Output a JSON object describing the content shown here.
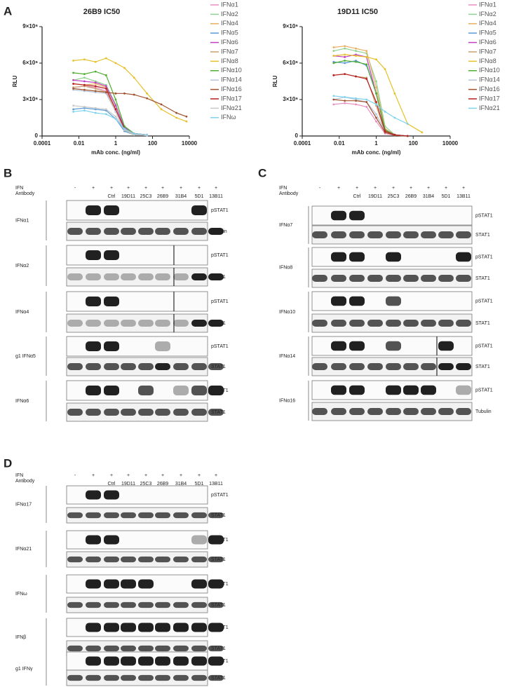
{
  "panel_a_label": "A",
  "chart_data": [
    {
      "type": "line",
      "title": "26B9 IC50",
      "xlabel": "mAb conc. (ng/ml)",
      "ylabel": "RLU",
      "xlog": true,
      "x": [
        0.005,
        0.02,
        0.08,
        0.3,
        1,
        3,
        10,
        50,
        300,
        2000,
        7000
      ],
      "xlim": [
        0.0001,
        10000
      ],
      "xticks": [
        0.0001,
        0.01,
        1,
        100,
        10000
      ],
      "ylim": [
        0,
        9000000.0
      ],
      "yticks": [
        0,
        {
          "value": 3000000.0,
          "label": "3×10⁶"
        },
        {
          "value": 6000000.0,
          "label": "6×10⁶"
        },
        {
          "value": 9000000.0,
          "label": "9×10⁶"
        }
      ],
      "series": [
        {
          "name": "IFNα1",
          "color": "#e98fbf",
          "values": [
            4000000.0,
            4100000.0,
            4000000.0,
            3700000.0,
            2200000.0,
            500000.0,
            100000.0,
            50000.0,
            null,
            null,
            null
          ]
        },
        {
          "name": "IFNα2",
          "color": "#8fd18f",
          "values": [
            4600000.0,
            4800000.0,
            4500000.0,
            4200000.0,
            2600000.0,
            600000.0,
            100000.0,
            50000.0,
            null,
            null,
            null
          ]
        },
        {
          "name": "IFNα4",
          "color": "#e8b060",
          "values": [
            4300000.0,
            4200000.0,
            4300000.0,
            4000000.0,
            2000000.0,
            400000.0,
            100000.0,
            50000.0,
            null,
            null,
            null
          ]
        },
        {
          "name": "IFNα5",
          "color": "#5b9bd5",
          "values": [
            2200000.0,
            2300000.0,
            2200000.0,
            2100000.0,
            1400000.0,
            400000.0,
            100000.0,
            50000.0,
            null,
            null,
            null
          ]
        },
        {
          "name": "IFNα6",
          "color": "#c03fc0",
          "values": [
            4600000.0,
            4500000.0,
            4400000.0,
            4100000.0,
            2500000.0,
            700000.0,
            200000.0,
            100000.0,
            null,
            null,
            null
          ]
        },
        {
          "name": "IFNα7",
          "color": "#c8a070",
          "values": [
            4000000.0,
            4100000.0,
            3900000.0,
            3600000.0,
            2000000.0,
            500000.0,
            100000.0,
            50000.0,
            null,
            null,
            null
          ]
        },
        {
          "name": "IFNα8",
          "color": "#e6c029",
          "values": [
            6200000.0,
            6300000.0,
            6100000.0,
            6400000.0,
            6000000.0,
            5600000.0,
            4800000.0,
            3500000.0,
            2200000.0,
            1500000.0,
            1200000.0
          ]
        },
        {
          "name": "IFNα10",
          "color": "#4fae30",
          "values": [
            5200000.0,
            5100000.0,
            5300000.0,
            5000000.0,
            3000000.0,
            800000.0,
            200000.0,
            100000.0,
            null,
            null,
            null
          ]
        },
        {
          "name": "IFNα14",
          "color": "#b6c6dc",
          "values": [
            3800000.0,
            3700000.0,
            3600000.0,
            3500000.0,
            2000000.0,
            500000.0,
            100000.0,
            50000.0,
            null,
            null,
            null
          ]
        },
        {
          "name": "IFNα16",
          "color": "#a0522d",
          "values": [
            3900000.0,
            3800000.0,
            3700000.0,
            3600000.0,
            3500000.0,
            3500000.0,
            3400000.0,
            3100000.0,
            2600000.0,
            1900000.0,
            1600000.0
          ]
        },
        {
          "name": "IFNα17",
          "color": "#b52020",
          "values": [
            4300000.0,
            4200000.0,
            4100000.0,
            3900000.0,
            2200000.0,
            600000.0,
            200000.0,
            100000.0,
            null,
            null,
            null
          ]
        },
        {
          "name": "IFNα21",
          "color": "#c8c8c8",
          "values": [
            2500000.0,
            2400000.0,
            2300000.0,
            2200000.0,
            1600000.0,
            500000.0,
            100000.0,
            50000.0,
            null,
            null,
            null
          ]
        },
        {
          "name": "IFNω",
          "color": "#7fd3ef",
          "values": [
            2000000.0,
            2100000.0,
            1900000.0,
            1800000.0,
            1400000.0,
            600000.0,
            200000.0,
            100000.0,
            null,
            null,
            null
          ]
        }
      ]
    },
    {
      "type": "line",
      "title": "19D11 IC50",
      "xlabel": "mAb  conc. (ng/ml)",
      "ylabel": "RLU",
      "xlog": true,
      "x": [
        0.005,
        0.02,
        0.08,
        0.3,
        1,
        3,
        10,
        50,
        300,
        2000,
        7000
      ],
      "xlim": [
        0.0001,
        10000
      ],
      "xticks": [
        0.0001,
        0.01,
        1,
        100,
        10000
      ],
      "ylim": [
        0,
        9000000.0
      ],
      "yticks": [
        0,
        {
          "value": 3000000.0,
          "label": "3×10⁶"
        },
        {
          "value": 6000000.0,
          "label": "6×10⁶"
        },
        {
          "value": 9000000.0,
          "label": "9×10⁶"
        }
      ],
      "series": [
        {
          "name": "IFNα1",
          "color": "#e98fbf",
          "values": [
            2600000.0,
            2700000.0,
            2600000.0,
            2400000.0,
            1200000.0,
            200000.0,
            50000.0,
            0,
            null,
            null,
            null
          ]
        },
        {
          "name": "IFNα2",
          "color": "#8fd18f",
          "values": [
            7000000.0,
            7200000.0,
            7000000.0,
            6800000.0,
            4500000.0,
            800000.0,
            100000.0,
            0,
            null,
            null,
            null
          ]
        },
        {
          "name": "IFNα4",
          "color": "#e8b060",
          "values": [
            7300000.0,
            7400000.0,
            7200000.0,
            7000000.0,
            4000000.0,
            600000.0,
            100000.0,
            0,
            null,
            null,
            null
          ]
        },
        {
          "name": "IFNα5",
          "color": "#5b9bd5",
          "values": [
            6100000.0,
            6000000.0,
            6200000.0,
            5800000.0,
            3500000.0,
            500000.0,
            100000.0,
            0,
            null,
            null,
            null
          ]
        },
        {
          "name": "IFNα6",
          "color": "#c03fc0",
          "values": [
            6600000.0,
            6500000.0,
            6700000.0,
            6500000.0,
            3500000.0,
            500000.0,
            100000.0,
            0,
            null,
            null,
            null
          ]
        },
        {
          "name": "IFNα7",
          "color": "#c8a070",
          "values": [
            5000000.0,
            5100000.0,
            4900000.0,
            4800000.0,
            2500000.0,
            300000.0,
            50000.0,
            0,
            null,
            null,
            null
          ]
        },
        {
          "name": "IFNα8",
          "color": "#e6c029",
          "values": [
            6600000.0,
            6700000.0,
            6600000.0,
            6500000.0,
            6300000.0,
            5500000.0,
            3500000.0,
            1000000.0,
            300000.0,
            null,
            null
          ]
        },
        {
          "name": "IFNα10",
          "color": "#4fae30",
          "values": [
            6000000.0,
            6200000.0,
            6100000.0,
            5900000.0,
            3500000.0,
            500000.0,
            100000.0,
            0,
            null,
            null,
            null
          ]
        },
        {
          "name": "IFNα14",
          "color": "#b6c6dc",
          "values": [
            3000000.0,
            3200000.0,
            3000000.0,
            2800000.0,
            1800000.0,
            400000.0,
            100000.0,
            0,
            null,
            null,
            null
          ]
        },
        {
          "name": "IFNα16",
          "color": "#a0522d",
          "values": [
            3000000.0,
            2900000.0,
            2900000.0,
            2800000.0,
            1500000.0,
            300000.0,
            50000.0,
            0,
            null,
            null,
            null
          ]
        },
        {
          "name": "IFNα17",
          "color": "#b52020",
          "values": [
            5000000.0,
            5100000.0,
            4900000.0,
            4700000.0,
            2800000.0,
            400000.0,
            100000.0,
            0,
            null,
            null,
            null
          ]
        },
        {
          "name": "IFNα21",
          "color": "#7fd3ef",
          "values": [
            3300000.0,
            3200000.0,
            3100000.0,
            3000000.0,
            2600000.0,
            2000000.0,
            1500000.0,
            1000000.0,
            null,
            null,
            null
          ]
        }
      ]
    }
  ],
  "blots": [
    {
      "label": "B",
      "ifn": "IFN",
      "antibody": "Antibody",
      "signs": [
        "-",
        "+",
        "+",
        "+",
        "+",
        "+",
        "+",
        "+",
        "+"
      ],
      "antibodies": [
        "Ctrl",
        "19D11",
        "25C3",
        "26B9",
        "31B4",
        "5D1",
        "13B11"
      ],
      "rows": [
        {
          "name": "IFNα1",
          "bands": [
            "pSTAT1",
            "Tubulin"
          ]
        },
        {
          "name": "IFNα2",
          "bands": [
            "pSTAT1",
            "STAT1"
          ]
        },
        {
          "name": "IFNα4",
          "bands": [
            "pSTAT1",
            "STAT1"
          ]
        },
        {
          "name": "g1 IFNα5",
          "bands": [
            "pSTAT1",
            "STAT1"
          ]
        },
        {
          "name": "IFNα6",
          "bands": [
            "pSTAT1",
            "STAT1"
          ]
        }
      ]
    },
    {
      "label": "C",
      "ifn": "IFN",
      "antibody": "Antibody",
      "signs": [
        "-",
        "+",
        "+",
        "+",
        "+",
        "+",
        "+",
        "+",
        "+"
      ],
      "antibodies": [
        "Ctrl",
        "19D11",
        "25C3",
        "26B9",
        "31B4",
        "5D1",
        "13B11"
      ],
      "rows": [
        {
          "name": "IFNα7",
          "bands": [
            "pSTAT1",
            "STAT1"
          ]
        },
        {
          "name": "IFNα8",
          "bands": [
            "pSTAT1",
            "STAT1"
          ]
        },
        {
          "name": "IFNα10",
          "bands": [
            "pSTAT1",
            "STAT1"
          ]
        },
        {
          "name": "IFNα14",
          "bands": [
            "pSTAT1",
            "STAT1"
          ]
        },
        {
          "name": "IFNα16",
          "bands": [
            "pSTAT1",
            "Tubulin"
          ]
        }
      ]
    },
    {
      "label": "D",
      "ifn": "IFN",
      "antibody": "Antibody",
      "signs": [
        "-",
        "+",
        "+",
        "+",
        "+",
        "+",
        "+",
        "+",
        "+"
      ],
      "antibodies": [
        "Ctrl",
        "19D11",
        "25C3",
        "26B9",
        "31B4",
        "5D1",
        "13B11"
      ],
      "rows": [
        {
          "name": "IFNα17",
          "bands": [
            "pSTAT1",
            "STAT1"
          ]
        },
        {
          "name": "IFNα21",
          "bands": [
            "pSTAT1",
            "STAT1"
          ]
        },
        {
          "name": "IFNω",
          "bands": [
            "pSTAT1",
            "STAT1"
          ]
        },
        {
          "name": "IFNβ",
          "bands": [
            "pSTAT1",
            "STAT1"
          ]
        },
        {
          "name": "g1 IFNγ",
          "bands": [
            "pSTAT1",
            "STAT1"
          ]
        }
      ]
    }
  ]
}
